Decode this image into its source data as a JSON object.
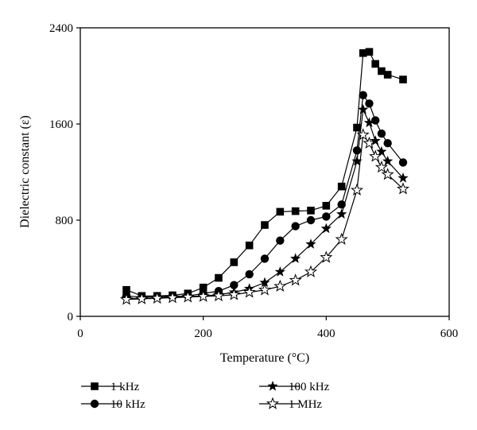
{
  "chart_data": {
    "type": "line",
    "title": "",
    "xlabel": "Temperature (°C)",
    "ylabel": "Dielectric constant (ε)",
    "xlim": [
      0,
      600
    ],
    "ylim": [
      0,
      2400
    ],
    "xticks": [
      0,
      200,
      400,
      600
    ],
    "yticks": [
      0,
      800,
      1600,
      2400
    ],
    "grid": false,
    "legend_position": "bottom",
    "series": [
      {
        "name": "1 kHz",
        "marker": "square-filled",
        "x": [
          75,
          100,
          125,
          150,
          175,
          200,
          225,
          250,
          275,
          300,
          325,
          350,
          375,
          400,
          425,
          450,
          460,
          470,
          480,
          490,
          500,
          525
        ],
        "y": [
          220,
          170,
          170,
          175,
          190,
          240,
          320,
          450,
          590,
          760,
          870,
          875,
          880,
          920,
          1080,
          1570,
          2190,
          2200,
          2100,
          2040,
          2010,
          1970
        ]
      },
      {
        "name": "10 kHz",
        "marker": "circle-filled",
        "x": [
          75,
          100,
          125,
          150,
          175,
          200,
          225,
          250,
          275,
          300,
          325,
          350,
          375,
          400,
          425,
          450,
          460,
          470,
          480,
          490,
          500,
          525
        ],
        "y": [
          170,
          160,
          165,
          165,
          170,
          190,
          210,
          260,
          350,
          480,
          630,
          750,
          800,
          830,
          930,
          1380,
          1840,
          1770,
          1630,
          1520,
          1440,
          1280
        ]
      },
      {
        "name": "100 kHz",
        "marker": "star-filled",
        "x": [
          75,
          100,
          125,
          150,
          175,
          200,
          225,
          250,
          275,
          300,
          325,
          350,
          375,
          400,
          425,
          450,
          460,
          470,
          480,
          490,
          500,
          525
        ],
        "y": [
          150,
          150,
          155,
          160,
          165,
          170,
          180,
          200,
          230,
          280,
          370,
          480,
          600,
          730,
          850,
          1290,
          1720,
          1610,
          1460,
          1370,
          1290,
          1150
        ]
      },
      {
        "name": "1 MHz",
        "marker": "star-open",
        "x": [
          75,
          100,
          125,
          150,
          175,
          200,
          225,
          250,
          275,
          300,
          325,
          350,
          375,
          400,
          425,
          450,
          460,
          470,
          480,
          490,
          500,
          525
        ],
        "y": [
          140,
          145,
          150,
          155,
          160,
          165,
          170,
          180,
          200,
          220,
          250,
          300,
          370,
          490,
          640,
          1050,
          1510,
          1440,
          1330,
          1240,
          1180,
          1060
        ]
      }
    ]
  },
  "legend": {
    "items": [
      {
        "label": "1 kHz"
      },
      {
        "label": "10 kHz"
      },
      {
        "label": "100 kHz"
      },
      {
        "label": "1 MHz"
      }
    ]
  }
}
